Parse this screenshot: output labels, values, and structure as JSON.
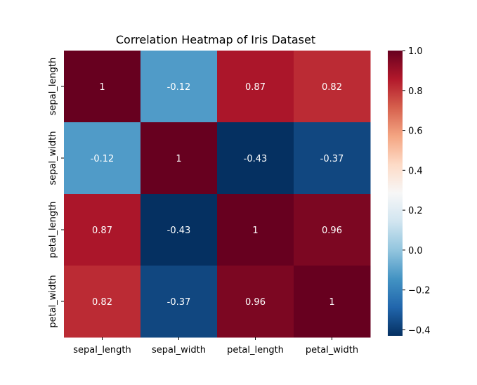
{
  "chart_data": {
    "type": "heatmap",
    "title": "Correlation Heatmap of Iris Dataset",
    "xlabel": "",
    "ylabel": "",
    "x_categories": [
      "sepal_length",
      "sepal_width",
      "petal_length",
      "petal_width"
    ],
    "y_categories": [
      "sepal_length",
      "sepal_width",
      "petal_length",
      "petal_width"
    ],
    "values": [
      [
        1.0,
        -0.12,
        0.87,
        0.82
      ],
      [
        -0.12,
        1.0,
        -0.43,
        -0.37
      ],
      [
        0.87,
        -0.43,
        1.0,
        0.96
      ],
      [
        0.82,
        -0.37,
        0.96,
        1.0
      ]
    ],
    "annotations": [
      [
        "1",
        "-0.12",
        "0.87",
        "0.82"
      ],
      [
        "-0.12",
        "1",
        "-0.43",
        "-0.37"
      ],
      [
        "0.87",
        "-0.43",
        "1",
        "0.96"
      ],
      [
        "0.82",
        "-0.37",
        "0.96",
        "1"
      ]
    ],
    "colormap": "RdBu_r",
    "value_range": [
      -0.43,
      1.0
    ],
    "colorbar": {
      "ticks": [
        -0.4,
        -0.2,
        0.0,
        0.2,
        0.4,
        0.6,
        0.8,
        1.0
      ],
      "tick_labels": [
        "−0.4",
        "−0.2",
        "0.0",
        "0.2",
        "0.4",
        "0.6",
        "0.8",
        "1.0"
      ],
      "placement": "right"
    },
    "grid": false
  }
}
